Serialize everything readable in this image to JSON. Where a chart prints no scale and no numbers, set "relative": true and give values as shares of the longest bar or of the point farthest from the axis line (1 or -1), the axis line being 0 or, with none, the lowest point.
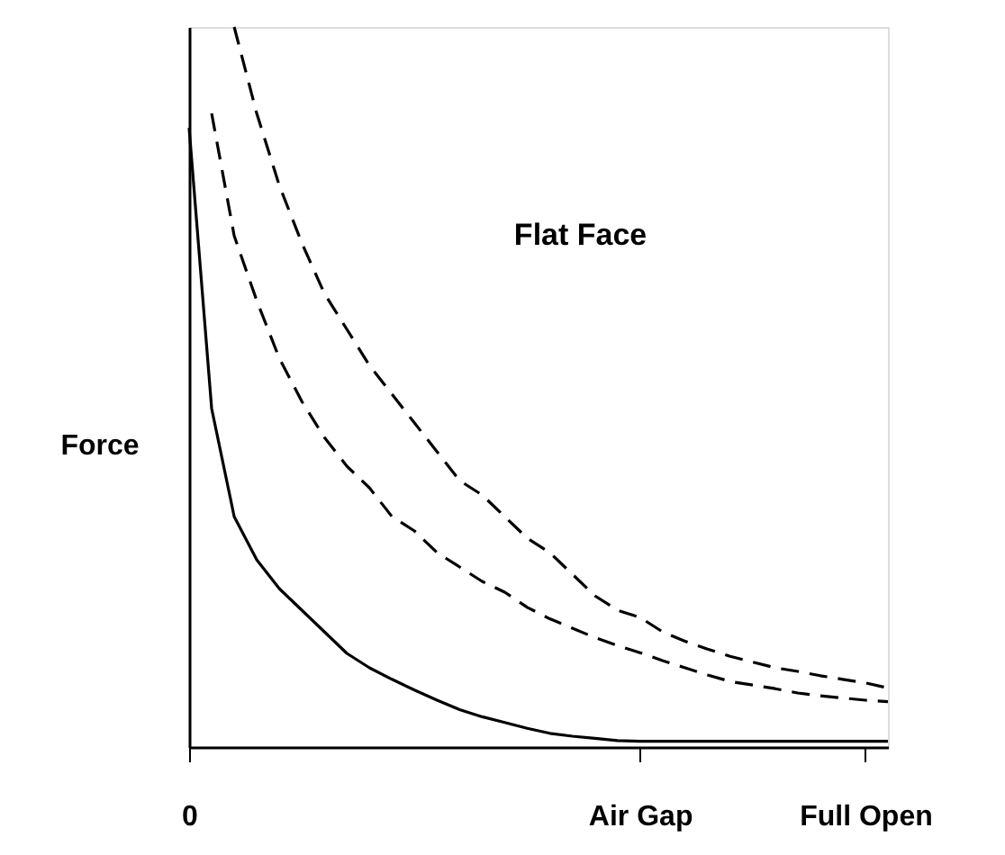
{
  "chart_data": {
    "type": "line",
    "relative": true,
    "ylabel": "Force",
    "annotations": [
      "Flat Face"
    ],
    "grid": false,
    "categories": [
      "0",
      null,
      null,
      null,
      null,
      null,
      null,
      null,
      null,
      null,
      null,
      null,
      null,
      null,
      null,
      null,
      null,
      null,
      null,
      null,
      "Air Gap",
      null,
      null,
      null,
      null,
      null,
      null,
      null,
      null,
      null,
      "Full Open",
      null
    ],
    "series": [
      {
        "color": "#000000",
        "line_style": "solid",
        "values": [
          0.86,
          0.47,
          0.32,
          0.26,
          0.22,
          0.19,
          0.16,
          0.13,
          0.11,
          0.094,
          0.079,
          0.065,
          0.052,
          0.042,
          0.034,
          0.026,
          0.019,
          0.015,
          0.012,
          0.009,
          0.008,
          0.008,
          0.008,
          0.008,
          0.008,
          0.008,
          0.008,
          0.008,
          0.008,
          0.008,
          0.008,
          0.008
        ]
      },
      {
        "color": "#000000",
        "line_style": "dashed",
        "values": [
          null,
          0.88,
          0.71,
          0.62,
          0.54,
          0.48,
          0.43,
          0.39,
          0.36,
          0.32,
          0.3,
          0.27,
          0.25,
          0.23,
          0.215,
          0.194,
          0.178,
          0.165,
          0.152,
          0.141,
          0.131,
          0.12,
          0.11,
          0.1,
          0.091,
          0.086,
          0.081,
          0.075,
          0.071,
          0.068,
          0.065,
          0.063
        ]
      },
      {
        "color": "#000000",
        "line_style": "dashed",
        "values": [
          null,
          null,
          1.0,
          0.88,
          0.78,
          0.7,
          0.63,
          0.58,
          0.53,
          0.49,
          0.45,
          0.41,
          0.37,
          0.35,
          0.32,
          0.29,
          0.27,
          0.24,
          0.21,
          0.19,
          0.18,
          0.16,
          0.147,
          0.136,
          0.126,
          0.118,
          0.11,
          0.105,
          0.099,
          0.094,
          0.089,
          0.082
        ]
      }
    ]
  }
}
